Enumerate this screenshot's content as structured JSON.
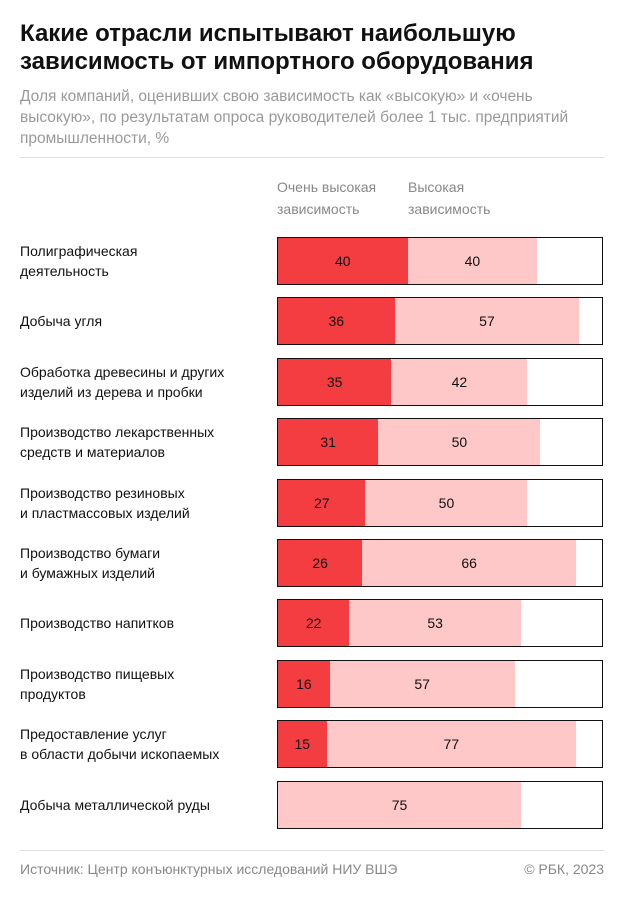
{
  "chart_data": {
    "type": "stacked-bar-horizontal",
    "title": "Какие отрасли испытывают наибольшую зависимость от импортного оборудования",
    "subtitle": "Доля компаний, оценивших свою зависимость как «высокую» и «очень высокую», по результатам опроса руководителей более 1 тыс. предприятий промышленности, %",
    "categories": [
      "Полиграфическая\nдеятельность",
      "Добыча угля",
      "Обработка древесины и других\nизделий из дерева и пробки",
      "Производство лекарственных\nсредств и материалов",
      "Производство резиновых\nи пластмассовых изделий",
      "Производство бумаги\nи бумажных изделий",
      "Производство напитков",
      "Производство пищевых\nпродуктов",
      "Предоставление услуг\nв области добычи ископаемых",
      "Добыча металлической руды"
    ],
    "series": [
      {
        "name": "Очень высокая зависимость",
        "color": "#f43d40",
        "values": [
          40,
          36,
          35,
          31,
          27,
          26,
          22,
          16,
          15,
          null
        ]
      },
      {
        "name": "Высокая зависимость",
        "color": "#ffc8c8",
        "values": [
          40,
          57,
          42,
          50,
          50,
          66,
          53,
          57,
          77,
          75
        ]
      }
    ],
    "xlim": [
      0,
      100
    ],
    "source": "Источник: Центр конъюнктурных исследований НИУ ВШЭ",
    "credit": "© РБК, 2023"
  }
}
